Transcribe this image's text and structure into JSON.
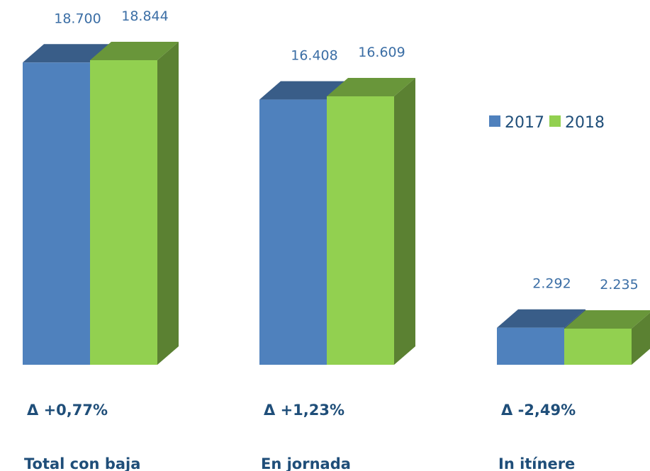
{
  "chart_data": {
    "type": "bar",
    "categories": [
      "Total con baja",
      "En jornada",
      "In itínere"
    ],
    "annotations": [
      "Δ +0,77%",
      "Δ +1,23%",
      "Δ -2,49%"
    ],
    "series": [
      {
        "name": "2017",
        "color": "#4f81bd",
        "values": [
          18700,
          16408,
          2292
        ],
        "value_labels": [
          "18.700",
          "16.408",
          "2.292"
        ]
      },
      {
        "name": "2018",
        "color": "#92d050",
        "values": [
          18844,
          16609,
          2235
        ],
        "value_labels": [
          "18.844",
          "16.609",
          "2.235"
        ]
      }
    ],
    "legend": "right"
  }
}
